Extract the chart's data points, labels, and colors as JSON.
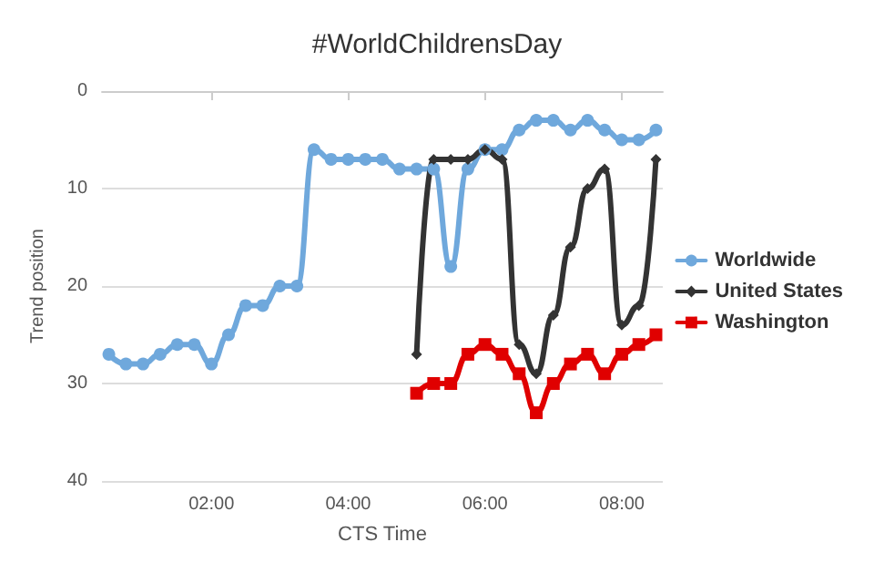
{
  "chart_data": {
    "type": "line",
    "title": "#WorldChildrensDay",
    "xlabel": "CTS Time",
    "ylabel": "Trend position",
    "xlim": [
      0.4,
      8.6
    ],
    "xticks": [
      {
        "value": 2,
        "label": "02:00"
      },
      {
        "value": 4,
        "label": "04:00"
      },
      {
        "value": 6,
        "label": "06:00"
      },
      {
        "value": 8,
        "label": "08:00"
      }
    ],
    "ylim": [
      40,
      0
    ],
    "yticks": [
      0,
      10,
      20,
      30,
      40
    ],
    "grid": "y",
    "legend": "right",
    "series": [
      {
        "name": "Worldwide",
        "color": "#6fa8dc",
        "marker": "circle",
        "x": [
          0.5,
          0.75,
          1,
          1.25,
          1.5,
          1.75,
          2,
          2.25,
          2.5,
          2.75,
          3,
          3.25,
          3.5,
          3.75,
          4,
          4.25,
          4.5,
          4.75,
          5,
          5.25,
          5.5,
          5.75,
          6,
          6.25,
          6.5,
          6.75,
          7,
          7.25,
          7.5,
          7.75,
          8,
          8.25,
          8.5
        ],
        "values": [
          27,
          28,
          28,
          27,
          26,
          26,
          28,
          25,
          22,
          22,
          20,
          20,
          6,
          7,
          7,
          7,
          7,
          8,
          8,
          8,
          18,
          8,
          6,
          6,
          4,
          3,
          3,
          4,
          3,
          4,
          5,
          5,
          4
        ]
      },
      {
        "name": "United States",
        "color": "#333333",
        "marker": "diamond",
        "x": [
          5,
          5.25,
          5.5,
          5.75,
          6,
          6.25,
          6.5,
          6.75,
          7,
          7.25,
          7.5,
          7.75,
          8,
          8.25,
          8.5
        ],
        "values": [
          27,
          7,
          7,
          7,
          6,
          7,
          26,
          29,
          23,
          16,
          10,
          8,
          24,
          22,
          7
        ]
      },
      {
        "name": "Washington",
        "color": "#e00000",
        "marker": "square",
        "x": [
          5,
          5.25,
          5.5,
          5.75,
          6,
          6.25,
          6.5,
          6.75,
          7,
          7.25,
          7.5,
          7.75,
          8,
          8.25,
          8.5
        ],
        "values": [
          31,
          30,
          30,
          27,
          26,
          27,
          29,
          33,
          30,
          28,
          27,
          29,
          27,
          26,
          25
        ]
      }
    ]
  }
}
